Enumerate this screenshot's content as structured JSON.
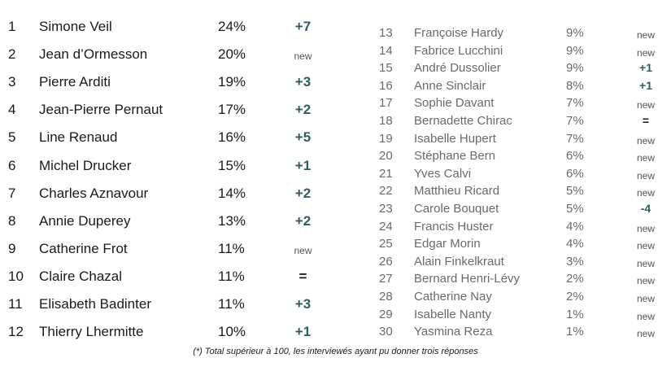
{
  "left_rows": [
    {
      "rank": "1",
      "name": "Simone Veil",
      "pct": "24%",
      "evolution": "+7"
    },
    {
      "rank": "2",
      "name": "Jean d’Ormesson",
      "pct": "20%",
      "evolution": "new"
    },
    {
      "rank": "3",
      "name": "Pierre Arditi",
      "pct": "19%",
      "evolution": "+3"
    },
    {
      "rank": "4",
      "name": "Jean-Pierre Pernaut",
      "pct": "17%",
      "evolution": "+2"
    },
    {
      "rank": "5",
      "name": "Line Renaud",
      "pct": "16%",
      "evolution": "+5"
    },
    {
      "rank": "6",
      "name": "Michel Drucker",
      "pct": "15%",
      "evolution": "+1"
    },
    {
      "rank": "7",
      "name": "Charles Aznavour",
      "pct": "14%",
      "evolution": "+2"
    },
    {
      "rank": "8",
      "name": "Annie Duperey",
      "pct": "13%",
      "evolution": "+2"
    },
    {
      "rank": "9",
      "name": "Catherine Frot",
      "pct": "11%",
      "evolution": "new"
    },
    {
      "rank": "10",
      "name": "Claire Chazal",
      "pct": "11%",
      "evolution": "="
    },
    {
      "rank": "11",
      "name": "Elisabeth Badinter",
      "pct": "11%",
      "evolution": "+3"
    },
    {
      "rank": "12",
      "name": "Thierry Lhermitte",
      "pct": "10%",
      "evolution": "+1"
    }
  ],
  "right_rows": [
    {
      "rank": "13",
      "name": "Françoise Hardy",
      "pct": "9%",
      "evolution": "new"
    },
    {
      "rank": "14",
      "name": "Fabrice Lucchini",
      "pct": "9%",
      "evolution": "new"
    },
    {
      "rank": "15",
      "name": "André Dussolier",
      "pct": "9%",
      "evolution": "+1"
    },
    {
      "rank": "16",
      "name": "Anne Sinclair",
      "pct": "8%",
      "evolution": "+1"
    },
    {
      "rank": "17",
      "name": "Sophie Davant",
      "pct": "7%",
      "evolution": "new"
    },
    {
      "rank": "18",
      "name": "Bernadette Chirac",
      "pct": "7%",
      "evolution": "="
    },
    {
      "rank": "19",
      "name": "Isabelle Hupert",
      "pct": "7%",
      "evolution": "new"
    },
    {
      "rank": "20",
      "name": "Stéphane Bern",
      "pct": "6%",
      "evolution": "new"
    },
    {
      "rank": "21",
      "name": "Yves Calvi",
      "pct": "6%",
      "evolution": "new"
    },
    {
      "rank": "22",
      "name": "Matthieu Ricard",
      "pct": "5%",
      "evolution": "new"
    },
    {
      "rank": "23",
      "name": "Carole Bouquet",
      "pct": "5%",
      "evolution": "-4"
    },
    {
      "rank": "24",
      "name": "Francis Huster",
      "pct": "4%",
      "evolution": "new"
    },
    {
      "rank": "25",
      "name": "Edgar Morin",
      "pct": "4%",
      "evolution": "new"
    },
    {
      "rank": "26",
      "name": "Alain Finkelkraut",
      "pct": "3%",
      "evolution": "new"
    },
    {
      "rank": "27",
      "name": "Bernard Henri-Lévy",
      "pct": "2%",
      "evolution": "new"
    },
    {
      "rank": "28",
      "name": "Catherine Nay",
      "pct": "2%",
      "evolution": "new"
    },
    {
      "rank": "29",
      "name": "Isabelle Nanty",
      "pct": "1%",
      "evolution": "new"
    },
    {
      "rank": "30",
      "name": "Yasmina Reza",
      "pct": "1%",
      "evolution": "new"
    }
  ],
  "footnote": "(*) Total supérieur à 100, les interviewés ayant pu donner trois réponses",
  "colors": {
    "evolution_positive": "#2f5d61",
    "text_main": "#1a1a1a",
    "text_secondary": "#6a6a6a"
  }
}
